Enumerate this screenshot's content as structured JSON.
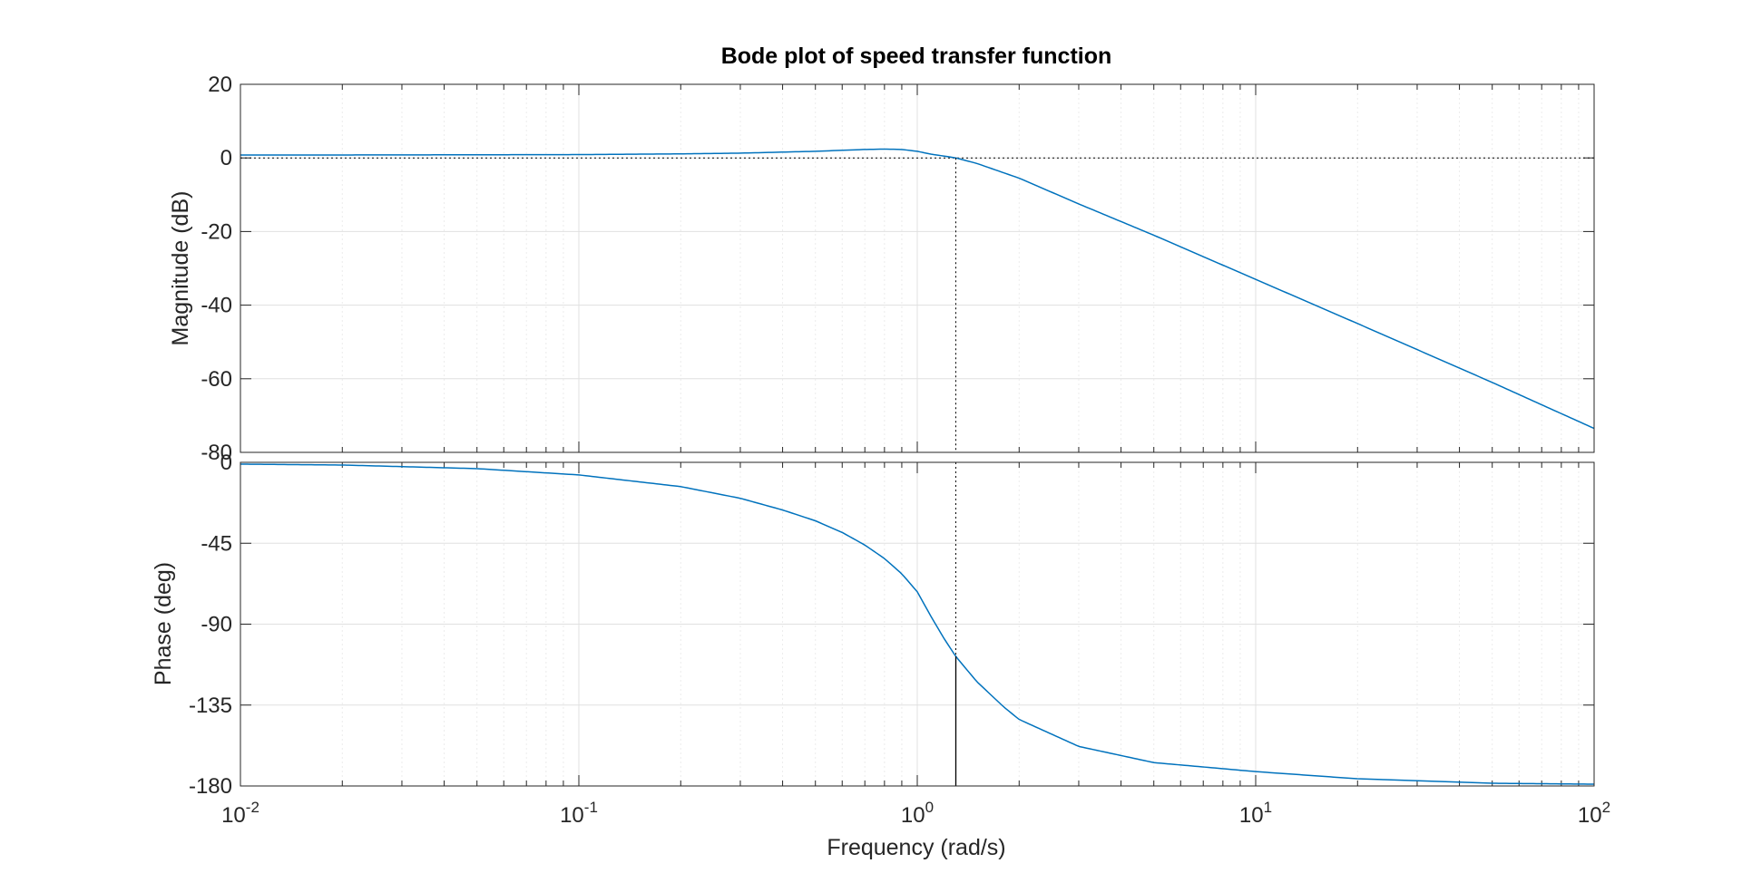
{
  "chart_data": {
    "type": "line",
    "title": "Bode plot of speed transfer function",
    "xlabel": "Frequency  (rad/s)",
    "xscale": "log",
    "xlim": [
      0.01,
      100
    ],
    "x_ticks": [
      {
        "base": "10",
        "exp": "-2"
      },
      {
        "base": "10",
        "exp": "-1"
      },
      {
        "base": "10",
        "exp": "0"
      },
      {
        "base": "10",
        "exp": "1"
      },
      {
        "base": "10",
        "exp": "2"
      }
    ],
    "grid": true,
    "line_color": "#0072BD",
    "marker_color": "#000000",
    "crossover_frequency": 1.3,
    "phase_at_crossover": -108,
    "magnitude": {
      "ylabel": "Magnitude (dB)",
      "ylim": [
        -80,
        20
      ],
      "y_ticks": [
        "20",
        "0",
        "-20",
        "-40",
        "-60",
        "-80"
      ],
      "reference_line": 0,
      "series": [
        {
          "x": [
            0.01,
            0.02,
            0.05,
            0.1,
            0.2,
            0.3,
            0.5,
            0.7,
            0.8,
            0.9,
            1.0,
            1.1,
            1.2,
            1.3,
            1.5,
            2,
            3,
            5,
            10,
            20,
            50,
            100
          ],
          "y": [
            0.8,
            0.8,
            0.85,
            0.9,
            1.1,
            1.3,
            1.8,
            2.3,
            2.4,
            2.3,
            1.8,
            1.0,
            0.5,
            0.0,
            -1.5,
            -5.5,
            -12.5,
            -21.0,
            -33.0,
            -45.0,
            -61.0,
            -73.5
          ]
        }
      ]
    },
    "phase": {
      "ylabel": "Phase (deg)",
      "ylim": [
        -180,
        0
      ],
      "y_ticks": [
        "0",
        "-45",
        "-90",
        "-135",
        "-180"
      ],
      "reference_line": -180,
      "series": [
        {
          "x": [
            0.01,
            0.02,
            0.05,
            0.1,
            0.2,
            0.3,
            0.4,
            0.5,
            0.6,
            0.7,
            0.8,
            0.9,
            1.0,
            1.1,
            1.2,
            1.3,
            1.5,
            1.8,
            2.0,
            3.0,
            5.0,
            10,
            20,
            50,
            100
          ],
          "y": [
            -1,
            -1.5,
            -3.5,
            -7,
            -13.5,
            -20,
            -26.5,
            -32.5,
            -39,
            -46,
            -53.5,
            -62,
            -72,
            -86,
            -98,
            -108,
            -122,
            -136,
            -143,
            -158,
            -167,
            -172,
            -176,
            -178.5,
            -179
          ]
        }
      ]
    }
  }
}
